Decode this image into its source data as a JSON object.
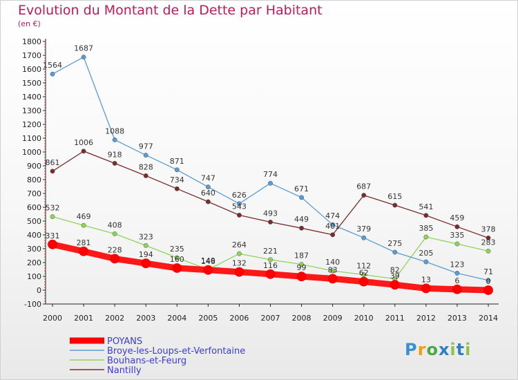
{
  "header": {
    "title": "Evolution du Montant de la Dette par Habitant",
    "unit": "(en €)"
  },
  "logo": {
    "text": "Proxiti"
  },
  "chart_data": {
    "type": "line",
    "title": "Evolution du Montant de la Dette par Habitant",
    "subtitle": "(en €)",
    "xlabel": "",
    "ylabel": "",
    "ylim": [
      -100,
      1800
    ],
    "ytick_step": 100,
    "grid": false,
    "legend_position": "bottom-left",
    "x": [
      "2000",
      "2001",
      "2002",
      "2003",
      "2004",
      "2005",
      "2006",
      "2007",
      "2008",
      "2009",
      "2010",
      "2011",
      "2012",
      "2013",
      "2014"
    ],
    "series": [
      {
        "name": "POYANS",
        "color": "#ff0000",
        "thick": true,
        "values": [
          331,
          281,
          228,
          194,
          160,
          146,
          132,
          116,
          99,
          83,
          62,
          39,
          13,
          6,
          0
        ],
        "labels": [
          "331",
          "281",
          "228",
          "194",
          "160",
          "146",
          "132",
          "116",
          "99",
          "83",
          "62",
          "39",
          "13",
          "6",
          "0"
        ]
      },
      {
        "name": "Broye-les-Loups-et-Verfontaine",
        "color": "#5a9bd4",
        "thick": false,
        "values": [
          1564,
          1687,
          1088,
          977,
          871,
          747,
          626,
          774,
          671,
          474,
          379,
          275,
          205,
          123,
          71
        ],
        "labels": [
          "1564",
          "1687",
          "1088",
          "977",
          "871",
          "747",
          "626",
          "774",
          "671",
          "474",
          "379",
          "275",
          "205",
          "123",
          "71"
        ]
      },
      {
        "name": "Bouhans-et-Feurg",
        "color": "#8ed45a",
        "thick": false,
        "values": [
          532,
          469,
          408,
          323,
          235,
          149,
          264,
          221,
          187,
          140,
          112,
          82,
          385,
          335,
          283
        ],
        "labels": [
          "532",
          "469",
          "408",
          "323",
          "235",
          "149",
          "264",
          "221",
          "187",
          "140",
          "112",
          "82",
          "385",
          "335",
          "283"
        ]
      },
      {
        "name": "Nantilly",
        "color": "#7a2c2c",
        "thick": false,
        "values": [
          861,
          1006,
          918,
          828,
          734,
          640,
          543,
          493,
          449,
          401,
          687,
          615,
          541,
          459,
          378
        ],
        "labels": [
          "861",
          "1006",
          "918",
          "828",
          "734",
          "640",
          "543",
          "493",
          "449",
          "401",
          "687",
          "615",
          "541",
          "459",
          "378"
        ]
      }
    ]
  }
}
